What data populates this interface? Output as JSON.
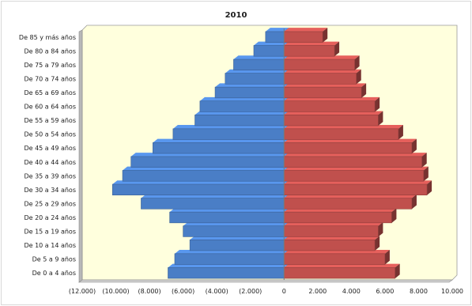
{
  "chart_data": {
    "type": "bar",
    "orientation": "horizontal",
    "title": "2010",
    "categories": [
      "De 0 a 4 años",
      "De 5 a 9 años",
      "De 10 a 14 años",
      "De 15 a 19 años",
      "De 20 a 24 años",
      "De 25 a 29 años",
      "De 30 a 34 años",
      "De 35 a 39 años",
      "De 40 a 44 años",
      "De 45 a 49 años",
      "De 50 a 54 años",
      "De 55 a 59 años",
      "De 60 a 64 años",
      "De 65 a 69 años",
      "De 70 a 74 años",
      "De 75 a 79 años",
      "De 80 a 84 años",
      "De 85 y más años"
    ],
    "series": [
      {
        "color": "#4a7ec6",
        "values": [
          -6900,
          -6500,
          -5600,
          -6000,
          -6800,
          -8500,
          -10200,
          -9600,
          -9100,
          -7800,
          -6600,
          -5300,
          -5000,
          -4100,
          -3500,
          -3000,
          -1800,
          -1100
        ]
      },
      {
        "color": "#c0504d",
        "values": [
          6600,
          6000,
          5400,
          5600,
          6400,
          7600,
          8500,
          8300,
          8200,
          7600,
          6800,
          5600,
          5400,
          4600,
          4300,
          4200,
          3000,
          2300
        ]
      }
    ],
    "xlim": [
      -12000,
      10000
    ],
    "xticks": [
      -12000,
      -10000,
      -8000,
      -6000,
      -4000,
      -2000,
      0,
      2000,
      4000,
      6000,
      8000,
      10000
    ],
    "xtick_labels": [
      "(12.000)",
      "(10.000)",
      "(8.000)",
      "(6.000)",
      "(4.000)",
      "(2.000)",
      "0",
      "2.000",
      "4.000",
      "6.000",
      "8.000",
      "10.000"
    ],
    "grid": false,
    "legend": "none",
    "plot_background": "#ffffdd",
    "bar_style": "3d"
  }
}
